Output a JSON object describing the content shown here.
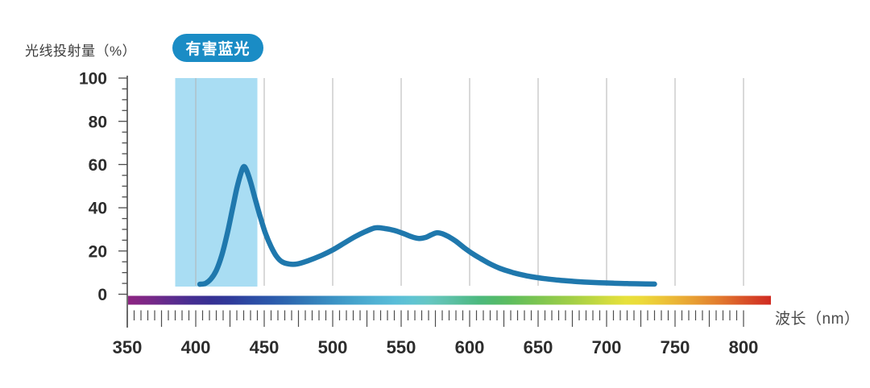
{
  "header": {
    "y_axis_title": "光线投射量（%）",
    "x_axis_title": "波长（nm）",
    "badge": {
      "label": "有害蓝光",
      "color": "#1a8cc5",
      "text_color": "#ffffff"
    }
  },
  "colors": {
    "curve": "#1f78ad",
    "highlight_band": "#a9ddf3",
    "gridline": "#b3b3b3",
    "axis": "#4c4c4c",
    "tick_label": "#2d2d2d"
  },
  "chart_data": {
    "type": "line",
    "title": "",
    "xlabel": "波长（nm）",
    "ylabel": "光线投射量（%）",
    "xlim": [
      350,
      820
    ],
    "ylim": [
      0,
      100
    ],
    "grid": "vertical-only",
    "x_axis": {
      "tick_labels": [
        350,
        400,
        450,
        500,
        550,
        600,
        650,
        700,
        750,
        800
      ],
      "minor_tick_step": 5,
      "major_tick_step": 25
    },
    "y_axis": {
      "tick_labels": [
        100,
        80,
        60,
        40,
        20,
        0
      ],
      "minor_tick_step": 5,
      "major_tick_step": 20
    },
    "gridlines_x": [
      400,
      450,
      500,
      550,
      600,
      650,
      700,
      750,
      800
    ],
    "highlight_band": {
      "label": "有害蓝光",
      "from_nm": 385,
      "to_nm": 445,
      "color": "#a9ddf3"
    },
    "series": [
      {
        "name": "光线投射量",
        "color": "#1f78ad",
        "points": [
          [
            403,
            4.6
          ],
          [
            407,
            5
          ],
          [
            411,
            7
          ],
          [
            415,
            11
          ],
          [
            419,
            18
          ],
          [
            423,
            28
          ],
          [
            427,
            40
          ],
          [
            430,
            49
          ],
          [
            433,
            56
          ],
          [
            435,
            59
          ],
          [
            437,
            57.5
          ],
          [
            440,
            52
          ],
          [
            443,
            45
          ],
          [
            447,
            36
          ],
          [
            451,
            28
          ],
          [
            455,
            22
          ],
          [
            459,
            17.5
          ],
          [
            463,
            15
          ],
          [
            468,
            14
          ],
          [
            474,
            14
          ],
          [
            482,
            15.5
          ],
          [
            492,
            18
          ],
          [
            500,
            20.5
          ],
          [
            508,
            23.5
          ],
          [
            516,
            26.5
          ],
          [
            524,
            29
          ],
          [
            531,
            30.7
          ],
          [
            538,
            30.4
          ],
          [
            545,
            29.5
          ],
          [
            552,
            28
          ],
          [
            558,
            26.5
          ],
          [
            563,
            25.8
          ],
          [
            568,
            26.3
          ],
          [
            572,
            27.5
          ],
          [
            576,
            28.4
          ],
          [
            580,
            28
          ],
          [
            585,
            26.5
          ],
          [
            590,
            24.5
          ],
          [
            596,
            21.5
          ],
          [
            602,
            18.8
          ],
          [
            608,
            16.5
          ],
          [
            615,
            14
          ],
          [
            622,
            12
          ],
          [
            630,
            10.3
          ],
          [
            638,
            9
          ],
          [
            646,
            8
          ],
          [
            655,
            7.2
          ],
          [
            665,
            6.5
          ],
          [
            675,
            6
          ],
          [
            685,
            5.6
          ],
          [
            695,
            5.3
          ],
          [
            705,
            5.1
          ],
          [
            715,
            4.9
          ],
          [
            725,
            4.8
          ],
          [
            735,
            4.7
          ]
        ],
        "annotations": {
          "peak": {
            "nm": 435,
            "value": 59
          },
          "local_min_1": {
            "nm": 468,
            "value": 14
          },
          "local_max_2": {
            "nm": 531,
            "value": 31
          },
          "local_min_2": {
            "nm": 563,
            "value": 26
          },
          "local_max_3": {
            "nm": 576,
            "value": 28.5
          },
          "end": {
            "nm": 735,
            "value": 5
          }
        }
      }
    ],
    "spectrum_bar": {
      "from_nm": 350,
      "to_nm": 820,
      "stops": [
        {
          "nm": 350,
          "color": "#8d2482"
        },
        {
          "nm": 365,
          "color": "#7a2887"
        },
        {
          "nm": 380,
          "color": "#602b8d"
        },
        {
          "nm": 395,
          "color": "#472e91"
        },
        {
          "nm": 410,
          "color": "#373093"
        },
        {
          "nm": 425,
          "color": "#2f3a9a"
        },
        {
          "nm": 440,
          "color": "#2c4ba4"
        },
        {
          "nm": 455,
          "color": "#2b59ab"
        },
        {
          "nm": 470,
          "color": "#2e6bb1"
        },
        {
          "nm": 485,
          "color": "#347fba"
        },
        {
          "nm": 500,
          "color": "#3b92c4"
        },
        {
          "nm": 515,
          "color": "#45a3cc"
        },
        {
          "nm": 530,
          "color": "#50b1d3"
        },
        {
          "nm": 545,
          "color": "#59bdd8"
        },
        {
          "nm": 558,
          "color": "#60c4d2"
        },
        {
          "nm": 570,
          "color": "#65c6c2"
        },
        {
          "nm": 582,
          "color": "#60c2ae"
        },
        {
          "nm": 594,
          "color": "#55bd96"
        },
        {
          "nm": 606,
          "color": "#4cb97f"
        },
        {
          "nm": 618,
          "color": "#52ba6c"
        },
        {
          "nm": 630,
          "color": "#5fbd5e"
        },
        {
          "nm": 645,
          "color": "#75c353"
        },
        {
          "nm": 660,
          "color": "#8cc94c"
        },
        {
          "nm": 675,
          "color": "#a3cf46"
        },
        {
          "nm": 690,
          "color": "#bdd741"
        },
        {
          "nm": 702,
          "color": "#d5dc3e"
        },
        {
          "nm": 714,
          "color": "#e7e13b"
        },
        {
          "nm": 726,
          "color": "#ecd93a"
        },
        {
          "nm": 740,
          "color": "#ecc538"
        },
        {
          "nm": 754,
          "color": "#eaaf35"
        },
        {
          "nm": 768,
          "color": "#e69632"
        },
        {
          "nm": 782,
          "color": "#e27b2e"
        },
        {
          "nm": 796,
          "color": "#db5b2a"
        },
        {
          "nm": 808,
          "color": "#d54226"
        },
        {
          "nm": 820,
          "color": "#d02b22"
        }
      ]
    }
  }
}
